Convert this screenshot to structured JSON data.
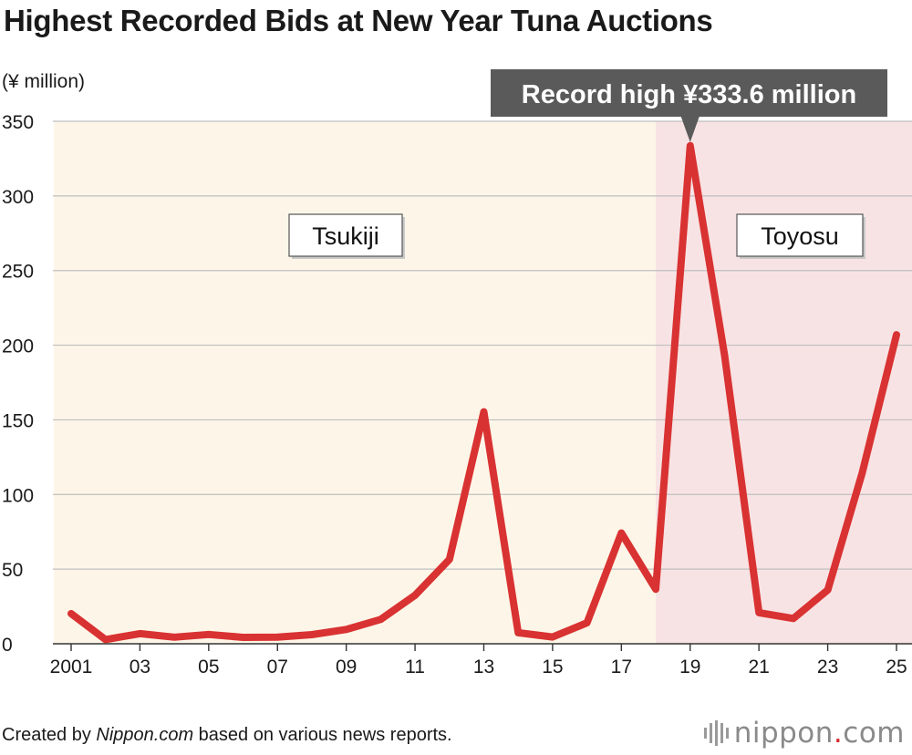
{
  "title": "Highest Recorded Bids at New Year Tuna Auctions",
  "unit_label": "(¥ million)",
  "colors": {
    "line": "#d93232",
    "tsukiji_bg": "#fdf6e8",
    "toyosu_bg": "#f8e3e4",
    "grid": "#bfbfbf",
    "callout_bg": "#5a5a5a"
  },
  "chart_data": {
    "type": "line",
    "x": [
      2001,
      2002,
      2003,
      2004,
      2005,
      2006,
      2007,
      2008,
      2009,
      2010,
      2011,
      2012,
      2013,
      2014,
      2015,
      2016,
      2017,
      2018,
      2019,
      2020,
      2021,
      2022,
      2023,
      2024,
      2025
    ],
    "series": [
      {
        "values": [
          20.2,
          2.8,
          6.8,
          4.4,
          6.2,
          4.3,
          4.4,
          6.1,
          9.6,
          16.3,
          32.5,
          56.5,
          155.4,
          7.4,
          4.5,
          14.0,
          74.2,
          36.5,
          333.6,
          193.2,
          20.8,
          16.9,
          36.0,
          114.2,
          207.0
        ]
      }
    ],
    "x_tick_labels": [
      "2001",
      "03",
      "05",
      "07",
      "09",
      "11",
      "13",
      "15",
      "17",
      "19",
      "21",
      "23",
      "25"
    ],
    "x_tick_years": [
      2001,
      2003,
      2005,
      2007,
      2009,
      2011,
      2013,
      2015,
      2017,
      2019,
      2021,
      2023,
      2025
    ],
    "y_ticks": [
      0,
      50,
      100,
      150,
      200,
      250,
      300,
      350
    ],
    "ylim": [
      0,
      350
    ],
    "regions": [
      {
        "label": "Tsukiji",
        "from": 2000.5,
        "to": 2018
      },
      {
        "label": "Toyosu",
        "from": 2018,
        "to": 2025.5
      }
    ],
    "annotation": {
      "text": "Record high ¥333.6 million",
      "x": 2019,
      "y": 333.6
    }
  },
  "footer": {
    "credit_prefix": "Created by ",
    "credit_source": "Nippon.com",
    "credit_suffix": " based on various news reports.",
    "logo_text_main": "nippon",
    "logo_dot": ".",
    "logo_text_end": "com"
  }
}
